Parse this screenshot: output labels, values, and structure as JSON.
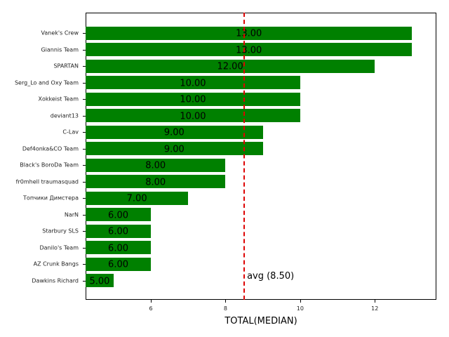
{
  "chart_data": {
    "type": "bar",
    "orientation": "horizontal",
    "categories": [
      "Vanek's Crew",
      "Giannis Team",
      "SPARTAN",
      "Serg_Lo and Oxy Team",
      "Xokkeist Team",
      "deviant13",
      "C-Lav",
      "Def4onka&CO Team",
      "Black's BoroDa Team",
      "fr0mhell traumasquad",
      "Топчики Димстера",
      "NarN",
      "Starbury SLS",
      "Danilo's Team",
      "AZ Crunk Bangs",
      "Dawkins Richard"
    ],
    "values": [
      13,
      13,
      12,
      10,
      10,
      10,
      9,
      9,
      8,
      8,
      7,
      6,
      6,
      6,
      6,
      5
    ],
    "value_labels": [
      "13.00",
      "13.00",
      "12.00",
      "10.00",
      "10.00",
      "10.00",
      "9.00",
      "9.00",
      "8.00",
      "8.00",
      "7.00",
      "6.00",
      "6.00",
      "6.00",
      "6.00",
      "5.00"
    ],
    "xlabel": "TOTAL(MEDIAN)",
    "ylabel": "",
    "title": "",
    "xlim": [
      4.25,
      13.65
    ],
    "xticks": [
      6,
      8,
      10,
      12
    ],
    "xtick_labels": [
      "6",
      "8",
      "10",
      "12"
    ],
    "grid": false,
    "reference_line": {
      "value": 8.5,
      "label": "avg (8.50)",
      "style": "dashed",
      "color": "#dd0000"
    },
    "bar_color": "#008000"
  }
}
